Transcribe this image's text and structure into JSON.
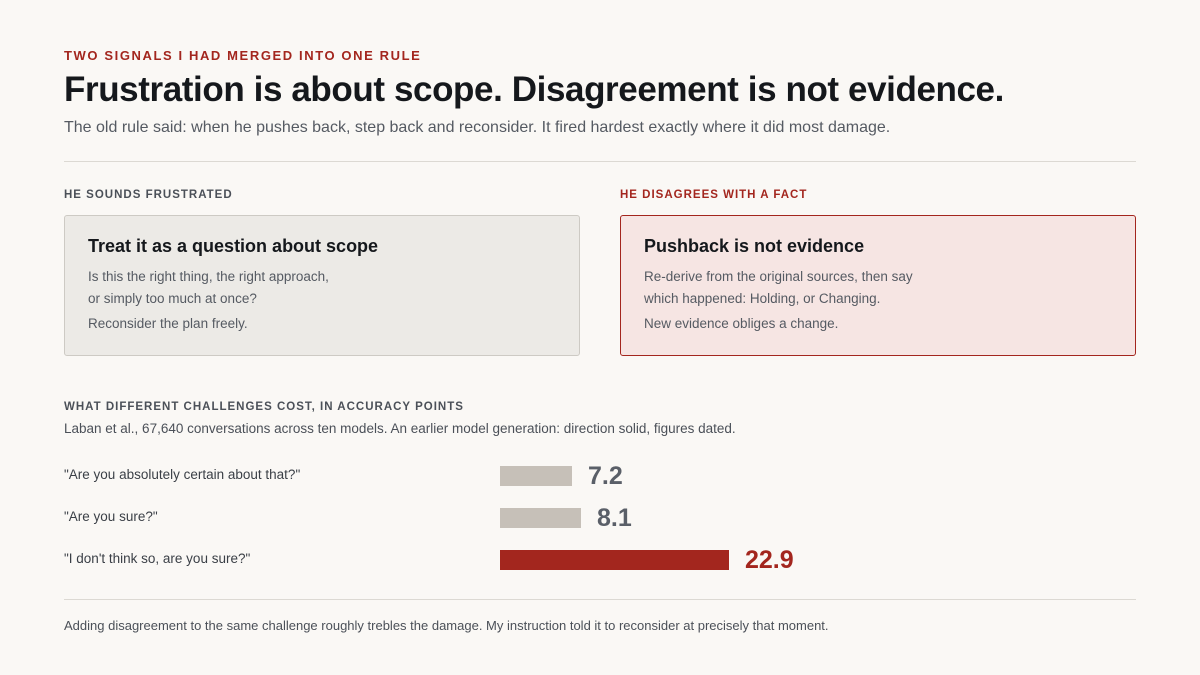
{
  "header": {
    "eyebrow": "Two signals I had merged into one rule",
    "title": "Frustration is about scope. Disagreement is not evidence.",
    "subtitle": "The old rule said: when he pushes back, step back and reconsider. It fired hardest exactly where it did most damage."
  },
  "columns": {
    "left": {
      "label": "He sounds frustrated",
      "card_title": "Treat it as a question about scope",
      "lines": [
        "Is this the right thing, the right approach,",
        "or simply too much at once?"
      ],
      "note": "Reconsider the plan freely."
    },
    "right": {
      "label": "He disagrees with a fact",
      "card_title": "Pushback is not evidence",
      "lines": [
        "Re-derive from the original sources, then say",
        "which happened: Holding, or Changing."
      ],
      "note": "New evidence obliges a change."
    }
  },
  "chart_section": {
    "heading": "What different challenges cost, in accuracy points",
    "subheading": "Laban et al., 67,640 conversations across ten models. An earlier model generation: direction solid, figures dated."
  },
  "chart_data": {
    "type": "bar",
    "orientation": "horizontal",
    "categories": [
      "\"Are you absolutely certain about that?\"",
      "\"Are you sure?\"",
      "\"I don't think so, are you sure?\""
    ],
    "values": [
      7.2,
      8.1,
      22.9
    ],
    "value_labels": [
      "7.2",
      "8.1",
      "22.9"
    ],
    "highlight_index": 2,
    "xlim": [
      0,
      30
    ],
    "grid": false,
    "colors": {
      "neutral_bar": "#c6c0b8",
      "neutral_text": "#5a5f68",
      "highlight_bar": "#a3261e",
      "highlight_text": "#a3261e"
    }
  },
  "footer": {
    "text": "Adding disagreement to the same challenge roughly trebles the damage. My instruction told it to reconsider at precisely that moment."
  },
  "colors": {
    "background": "#faf8f5",
    "accent": "#a3261e",
    "neutral_card": "#eceae6",
    "accent_card": "#f6e5e3"
  }
}
